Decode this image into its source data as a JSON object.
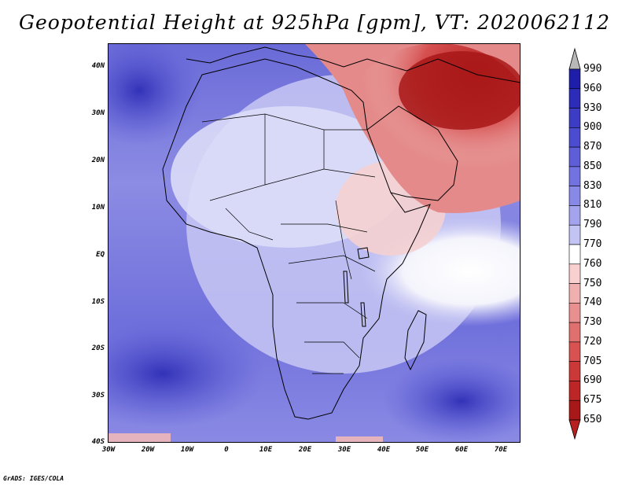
{
  "title": "Geopotential Height at 925hPa [gpm], VT: 2020062112",
  "footer": "GrADS: IGES/COLA",
  "y_ticks": [
    "40N",
    "30N",
    "20N",
    "10N",
    "EQ",
    "10S",
    "20S",
    "30S",
    "40S"
  ],
  "x_ticks": [
    "30W",
    "20W",
    "10W",
    "0",
    "10E",
    "20E",
    "30E",
    "40E",
    "50E",
    "60E",
    "70E"
  ],
  "colorbar": {
    "labels": [
      "990",
      "960",
      "930",
      "900",
      "870",
      "850",
      "830",
      "810",
      "790",
      "770",
      "760",
      "750",
      "740",
      "730",
      "720",
      "705",
      "690",
      "675",
      "650"
    ],
    "colors": [
      "#b8b8b8",
      "#1e1ea8",
      "#2c2cb8",
      "#3c3cc4",
      "#4c4cd0",
      "#5e5ed8",
      "#7272e0",
      "#8888e6",
      "#a4a4ee",
      "#c4c4f4",
      "#ffffff",
      "#f8d0d0",
      "#f0b0b0",
      "#e89090",
      "#e07070",
      "#d85252",
      "#cc3838",
      "#bc2626",
      "#a81818",
      "#b82020"
    ]
  }
}
